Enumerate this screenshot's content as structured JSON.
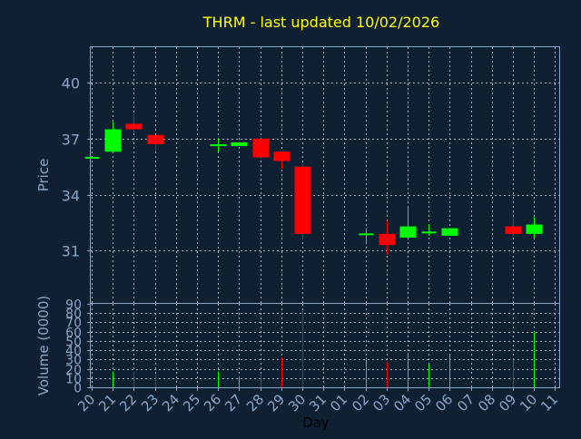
{
  "title": "THRM - last updated 10/02/2026",
  "colors": {
    "background": "#0f2033",
    "title": "#ffff00",
    "axis_text": "#8aa6c8",
    "frame": "#8aa6c8",
    "grid": "#aab4c0",
    "up": "#00ff00",
    "down": "#ff0000",
    "xlabel": "#000000"
  },
  "chart_data": {
    "type": "candlestick",
    "title": "THRM - last updated 10/02/2026",
    "price_panel": {
      "ylabel": "Price",
      "ylim": [
        28.2,
        41.9
      ],
      "yticks": [
        31,
        34,
        37,
        40
      ]
    },
    "volume_panel": {
      "ylabel": "Volume (0000)",
      "ylim": [
        0,
        90
      ],
      "yticks": [
        0,
        10,
        20,
        30,
        40,
        50,
        60,
        70,
        80,
        90
      ]
    },
    "xlabel": "Day",
    "x_ticks": [
      "20",
      "21",
      "22",
      "23",
      "24",
      "25",
      "26",
      "27",
      "28",
      "29",
      "30",
      "31",
      "01",
      "02",
      "03",
      "04",
      "05",
      "06",
      "07",
      "08",
      "09",
      "10",
      "11"
    ],
    "candles": [
      {
        "day": "20",
        "open": 36.0,
        "high": 36.0,
        "low": 36.0,
        "close": 36.0,
        "volume": 0
      },
      {
        "day": "21",
        "open": 36.3,
        "high": 37.9,
        "low": 36.3,
        "close": 37.5,
        "volume": 17
      },
      {
        "day": "22",
        "open": 37.8,
        "high": 38.3,
        "low": 37.3,
        "close": 37.5,
        "volume": 17
      },
      {
        "day": "23",
        "open": 37.2,
        "high": 37.2,
        "low": 36.3,
        "close": 36.7,
        "volume": 15
      },
      {
        "day": "26",
        "open": 36.6,
        "high": 37.0,
        "low": 36.3,
        "close": 36.7,
        "volume": 17
      },
      {
        "day": "27",
        "open": 36.6,
        "high": 36.8,
        "low": 36.6,
        "close": 36.8,
        "volume": 12
      },
      {
        "day": "28",
        "open": 37.0,
        "high": 37.0,
        "low": 35.9,
        "close": 36.0,
        "volume": 15
      },
      {
        "day": "29",
        "open": 36.3,
        "high": 36.3,
        "low": 35.4,
        "close": 35.8,
        "volume": 32
      },
      {
        "day": "30",
        "open": 35.5,
        "high": 35.7,
        "low": 31.6,
        "close": 31.9,
        "volume": 82
      },
      {
        "day": "02",
        "open": 31.9,
        "high": 32.2,
        "low": 31.4,
        "close": 31.9,
        "volume": 32
      },
      {
        "day": "03",
        "open": 31.9,
        "high": 32.6,
        "low": 30.8,
        "close": 31.3,
        "volume": 27
      },
      {
        "day": "04",
        "open": 31.7,
        "high": 33.4,
        "low": 31.7,
        "close": 32.3,
        "volume": 37
      },
      {
        "day": "05",
        "open": 32.0,
        "high": 32.4,
        "low": 31.8,
        "close": 32.0,
        "volume": 25
      },
      {
        "day": "06",
        "open": 31.8,
        "high": 32.2,
        "low": 31.8,
        "close": 32.2,
        "volume": 35
      },
      {
        "day": "09",
        "open": 32.3,
        "high": 32.8,
        "low": 31.8,
        "close": 31.9,
        "volume": 30
      },
      {
        "day": "10",
        "open": 31.9,
        "high": 32.8,
        "low": 31.7,
        "close": 32.4,
        "volume": 60
      }
    ]
  }
}
